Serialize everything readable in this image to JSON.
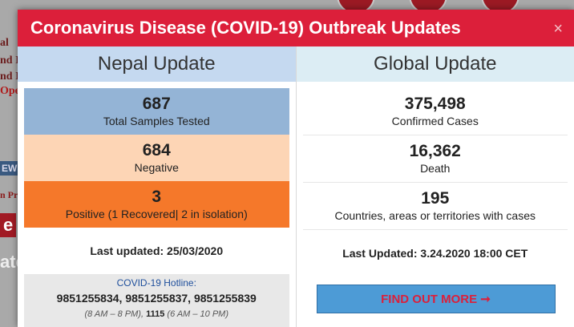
{
  "background": {
    "fragments": [
      "al",
      "nd I",
      "nd I",
      "Ope",
      "EWS",
      "n Pre",
      "e",
      "ate"
    ]
  },
  "modal": {
    "title": "Coronavirus Disease (COVID-19) Outbreak Updates",
    "close": "×",
    "nepal": {
      "header": "Nepal Update",
      "stats": [
        {
          "value": "687",
          "label": "Total Samples Tested"
        },
        {
          "value": "684",
          "label": "Negative"
        },
        {
          "value": "3",
          "label": "Positive (1 Recovered| 2 in isolation)"
        }
      ],
      "last_updated": "Last updated: 25/03/2020",
      "hotline": {
        "label": "COVID-19 Hotline:",
        "numbers": "9851255834, 9851255837, 9851255839",
        "hours_1": "(8 AM – 8 PM), ",
        "number_2": "1115",
        "hours_2": " (6 AM – 10 PM)"
      }
    },
    "global": {
      "header": "Global Update",
      "stats": [
        {
          "value": "375,498",
          "label": "Confirmed Cases"
        },
        {
          "value": "16,362",
          "label": "Death"
        },
        {
          "value": "195",
          "label": "Countries, areas or territories with cases"
        }
      ],
      "last_updated": "Last Updated: 3.24.2020 18:00 CET",
      "button": "FIND OUT MORE ➞"
    }
  }
}
